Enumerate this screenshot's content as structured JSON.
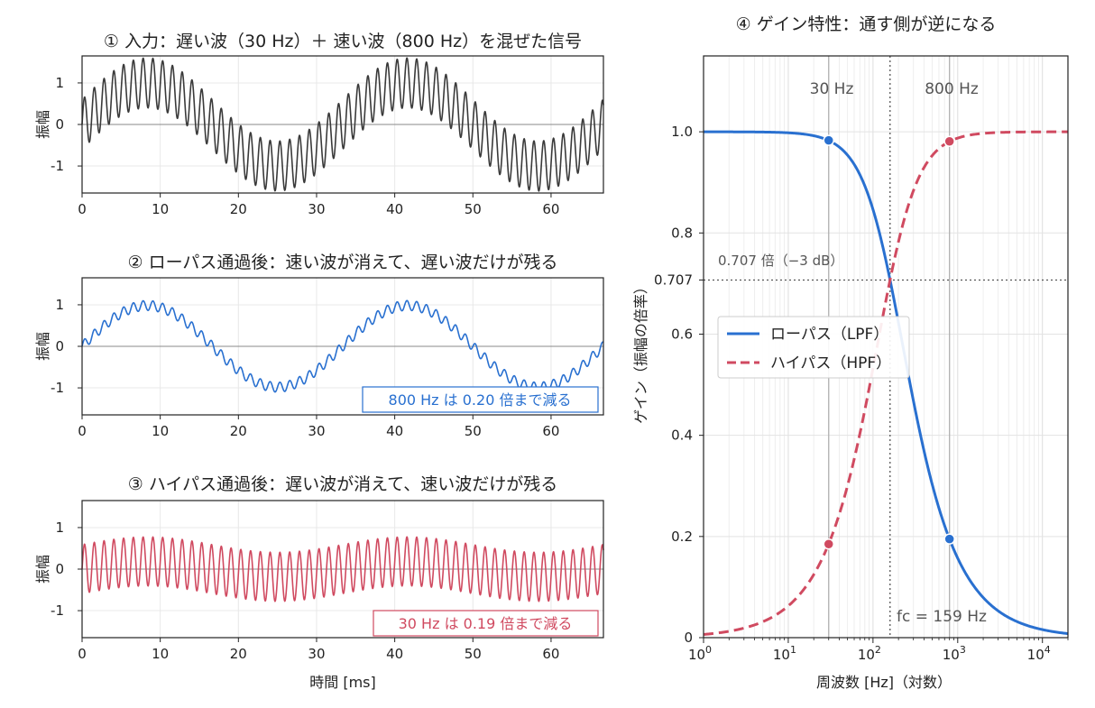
{
  "colors": {
    "input": "#3a3a3a",
    "lowpass": "#2970d0",
    "highpass": "#d04a60",
    "reference": "#888888"
  },
  "chart_data": [
    {
      "id": "input",
      "type": "line",
      "title": "① 入力：遅い波（30 Hz）＋ 速い波（800 Hz）を混ぜた信号",
      "xlabel": "",
      "ylabel": "振幅",
      "xlim": [
        0,
        66.7
      ],
      "ylim": [
        -1.65,
        1.65
      ],
      "xticks": [
        0,
        10,
        20,
        30,
        40,
        50,
        60
      ],
      "yticks": [
        -1,
        0,
        1
      ],
      "grid": true,
      "series": [
        {
          "slow_freq_hz": 30,
          "slow_amplitude": 1.0,
          "fast_freq_hz": 800,
          "fast_amplitude": 0.6
        }
      ]
    },
    {
      "id": "lowpass",
      "type": "line",
      "title": "② ローパス通過後：速い波が消えて、遅い波だけが残る",
      "xlabel": "",
      "ylabel": "振幅",
      "xlim": [
        0,
        66.7
      ],
      "ylim": [
        -1.65,
        1.65
      ],
      "xticks": [
        0,
        10,
        20,
        30,
        40,
        50,
        60
      ],
      "yticks": [
        -1,
        0,
        1
      ],
      "grid": true,
      "series": [
        {
          "slow_freq_hz": 30,
          "slow_amplitude": 0.983,
          "fast_freq_hz": 800,
          "fast_amplitude": 0.118
        }
      ],
      "annotation": "800 Hz は 0.20 倍まで減る"
    },
    {
      "id": "highpass",
      "type": "line",
      "title": "③ ハイパス通過後：遅い波が消えて、速い波だけが残る",
      "xlabel": "時間 [ms]",
      "ylabel": "振幅",
      "xlim": [
        0,
        66.7
      ],
      "ylim": [
        -1.65,
        1.65
      ],
      "xticks": [
        0,
        10,
        20,
        30,
        40,
        50,
        60
      ],
      "yticks": [
        -1,
        0,
        1
      ],
      "grid": true,
      "series": [
        {
          "slow_freq_hz": 30,
          "slow_amplitude": 0.185,
          "fast_freq_hz": 800,
          "fast_amplitude": 0.589
        }
      ],
      "annotation": "30 Hz は 0.19 倍まで減る"
    },
    {
      "id": "gain",
      "type": "line",
      "title": "④ ゲイン特性：通す側が逆になる",
      "xlabel": "周波数 [Hz]（対数）",
      "ylabel": "ゲイン（振幅の倍率）",
      "x_scale": "log",
      "xlim": [
        1,
        20000
      ],
      "ylim": [
        0,
        1.15
      ],
      "xticks": [
        1,
        10,
        100,
        1000,
        10000
      ],
      "xtick_labels": [
        [
          "10",
          "0"
        ],
        [
          "10",
          "1"
        ],
        [
          "10",
          "2"
        ],
        [
          "10",
          "3"
        ],
        [
          "10",
          "4"
        ]
      ],
      "yticks": [
        0,
        0.2,
        0.4,
        0.6,
        0.707,
        0.8,
        1.0
      ],
      "ytick_labels": [
        "0",
        "0.2",
        "0.4",
        "0.6",
        "0.707",
        "0.8",
        "1.0"
      ],
      "grid": true,
      "cutoff_hz": 159,
      "series": [
        {
          "name": "ローパス（LPF）",
          "style": "solid",
          "formula": "1/sqrt(1+(f/fc)^2)"
        },
        {
          "name": "ハイパス（HPF）",
          "style": "dashed",
          "formula": "(f/fc)/sqrt(1+(f/fc)^2)"
        }
      ],
      "markers": [
        {
          "series": "lowpass",
          "x": 30,
          "y": 0.983
        },
        {
          "series": "lowpass",
          "x": 800,
          "y": 0.195
        },
        {
          "series": "highpass",
          "x": 30,
          "y": 0.185
        },
        {
          "series": "highpass",
          "x": 800,
          "y": 0.981
        }
      ],
      "annotations": {
        "freq_low": "30 Hz",
        "freq_high": "800 Hz",
        "half_power": "0.707 倍（−3 dB）",
        "cutoff": "fc = 159 Hz"
      },
      "legend_position": "center-left"
    }
  ]
}
